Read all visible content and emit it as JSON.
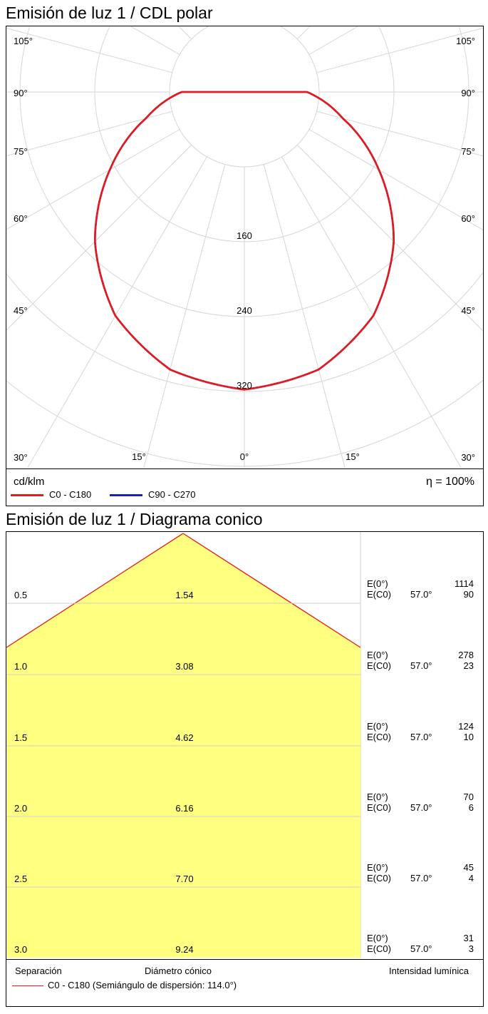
{
  "polar": {
    "title": "Emisión de luz 1 / CDL polar",
    "unit": "cd/klm",
    "efficiency": "η = 100%",
    "angle_labels_left": [
      "105°",
      "90°",
      "75°",
      "60°",
      "45°",
      "30°"
    ],
    "angle_labels_right": [
      "105°",
      "90°",
      "75°",
      "60°",
      "45°",
      "30°"
    ],
    "bottom_labels": [
      "15°",
      "0°",
      "15°"
    ],
    "radial_labels": [
      "160",
      "240",
      "320"
    ],
    "legend": [
      {
        "label": "C0 - C180",
        "color": "#e41a1c"
      },
      {
        "label": "C90 - C270",
        "color": "#1f1fb4"
      }
    ]
  },
  "cone": {
    "title": "Emisión de luz 1 / Diagrama conico",
    "footer": {
      "separation": "Separación",
      "diameter": "Diámetro cónico",
      "intensity": "Intensidad lumínica"
    },
    "legend": {
      "label": "C0 - C180 (Semiángulo de dispersión: 114.0°)",
      "color": "#e41a1c"
    },
    "fill_color": "#ffff80",
    "rows": [
      {
        "distance": "0.5",
        "diameter": "1.54",
        "e0_label": "E(0°)",
        "ec0_label": "E(C0)",
        "angle": "57.0°",
        "e0": "1114",
        "ec0": "90"
      },
      {
        "distance": "1.0",
        "diameter": "3.08",
        "e0_label": "E(0°)",
        "ec0_label": "E(C0)",
        "angle": "57.0°",
        "e0": "278",
        "ec0": "23"
      },
      {
        "distance": "1.5",
        "diameter": "4.62",
        "e0_label": "E(0°)",
        "ec0_label": "E(C0)",
        "angle": "57.0°",
        "e0": "124",
        "ec0": "10"
      },
      {
        "distance": "2.0",
        "diameter": "6.16",
        "e0_label": "E(0°)",
        "ec0_label": "E(C0)",
        "angle": "57.0°",
        "e0": "70",
        "ec0": "6"
      },
      {
        "distance": "2.5",
        "diameter": "7.70",
        "e0_label": "E(0°)",
        "ec0_label": "E(C0)",
        "angle": "57.0°",
        "e0": "45",
        "ec0": "4"
      },
      {
        "distance": "3.0",
        "diameter": "9.24",
        "e0_label": "E(0°)",
        "ec0_label": "E(C0)",
        "angle": "57.0°",
        "e0": "31",
        "ec0": "3"
      }
    ]
  },
  "chart_data": [
    {
      "type": "polar",
      "title": "Emisión de luz 1 / CDL polar",
      "unit": "cd/klm",
      "radial_ticks": [
        160,
        240,
        320
      ],
      "series": [
        {
          "name": "C0 - C180",
          "color": "#e41a1c",
          "angles_deg": [
            0,
            15,
            30,
            45,
            60,
            75,
            90,
            105,
            120,
            135,
            150,
            165,
            180
          ],
          "values": [
            318,
            307,
            276,
            226,
            166,
            109,
            67,
            44,
            0,
            0,
            0,
            0,
            0
          ]
        },
        {
          "name": "C90 - C270",
          "color": "#1f1fb4",
          "angles_deg": [
            0,
            15,
            30,
            45,
            60,
            75,
            90,
            105,
            120,
            135,
            150,
            165,
            180
          ],
          "values": [
            318,
            307,
            276,
            226,
            166,
            109,
            67,
            44,
            0,
            0,
            0,
            0,
            0
          ]
        }
      ]
    },
    {
      "type": "table",
      "title": "Emisión de luz 1 / Diagrama conico",
      "half_angle_deg": 57.0,
      "columns": [
        "Separación",
        "Diámetro cónico",
        "Intensidad lumínica"
      ],
      "distance": [
        0.5,
        1.0,
        1.5,
        2.0,
        2.5,
        3.0
      ],
      "diameter": [
        1.54,
        3.08,
        4.62,
        6.16,
        7.7,
        9.24
      ],
      "E_0": [
        1114,
        278,
        124,
        70,
        45,
        31
      ],
      "E_C0": [
        90,
        23,
        10,
        6,
        4,
        3
      ]
    }
  ]
}
